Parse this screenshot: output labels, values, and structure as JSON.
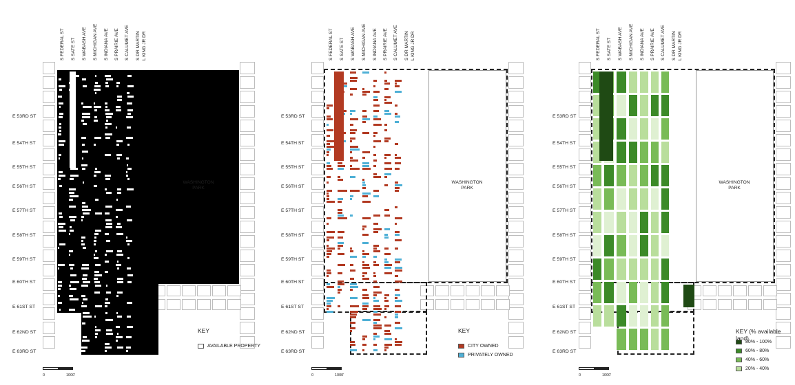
{
  "streets_ns": [
    "S FEDERAL ST",
    "S SATE ST",
    "S WABASH AVE",
    "S MICHIGAN AVE",
    "S INDIANA AVE",
    "S PRAIRIE AVE",
    "S CALUMET AVE",
    "S DR MARTIN\nL KING JR DR"
  ],
  "streets_ew": [
    "E 53RD ST",
    "E 54TH ST",
    "E 55TH ST",
    "E 56TH ST",
    "E 57TH ST",
    "E 58TH ST",
    "E 59TH ST",
    "E 60TH ST",
    "E 61ST ST",
    "E 62ND ST",
    "E 63RD ST"
  ],
  "park_label": "WASHINGTON\nPARK",
  "scale": {
    "zero": "0",
    "end": "1000'"
  },
  "maps": [
    {
      "key_title": "KEY",
      "key_items": [
        {
          "label": "AVAILABLE PROPERTY",
          "color": "#ffffff"
        }
      ]
    },
    {
      "key_title": "KEY",
      "key_items": [
        {
          "label": "CITY OWNED",
          "color": "#b23a22"
        },
        {
          "label": "PRIVATELY OWNED",
          "color": "#4fb0d6"
        }
      ]
    },
    {
      "key_title": "KEY (% available land)",
      "key_items": [
        {
          "label": "80% - 100%",
          "color": "#1f4a14"
        },
        {
          "label": "60% - 80%",
          "color": "#3c8a28"
        },
        {
          "label": "40% - 60%",
          "color": "#79bb57"
        },
        {
          "label": "20% - 40%",
          "color": "#b9de9c"
        }
      ]
    }
  ]
}
